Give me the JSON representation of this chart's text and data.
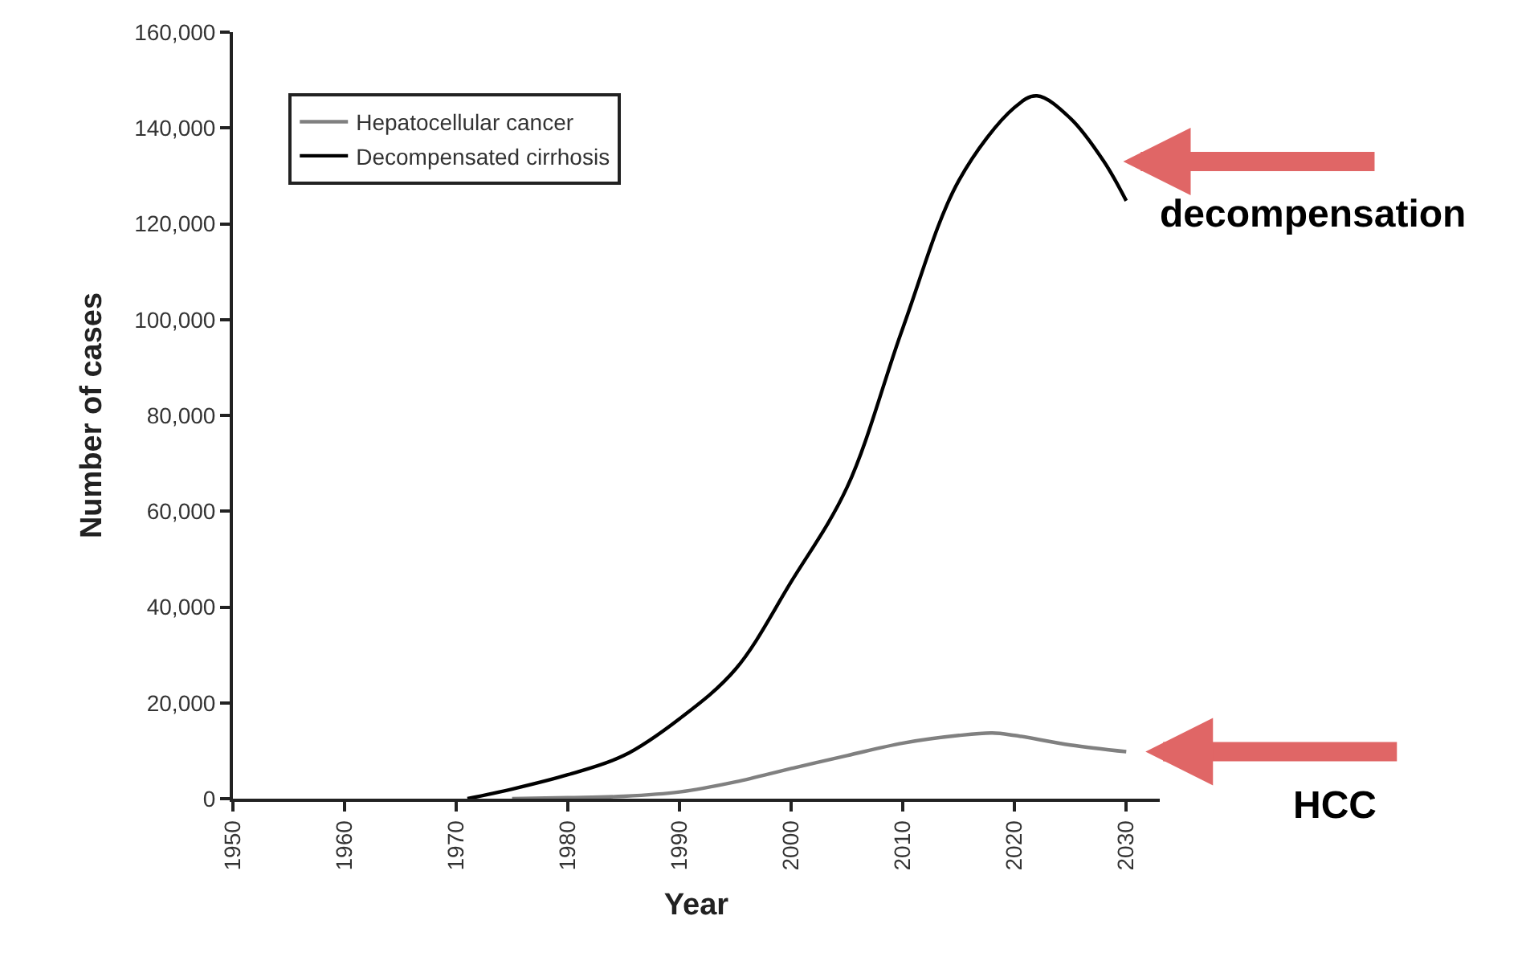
{
  "chart_data": {
    "type": "line",
    "xlabel": "Year",
    "ylabel": "Number of cases",
    "xlim": [
      1950,
      2033
    ],
    "xticks": [
      1950,
      1960,
      1970,
      1980,
      1990,
      2000,
      2010,
      2020,
      2030
    ],
    "ylim": [
      0,
      160000
    ],
    "yticks": [
      0,
      {
        "value": 20000,
        "label": "20,000"
      },
      {
        "value": 40000,
        "label": "40,000"
      },
      {
        "value": 60000,
        "label": "60,000"
      },
      {
        "value": 80000,
        "label": "80,000"
      },
      {
        "value": 100000,
        "label": "100,000"
      },
      {
        "value": 120000,
        "label": "120,000"
      },
      {
        "value": 140000,
        "label": "140,000"
      },
      {
        "value": 160000,
        "label": "160,000"
      }
    ],
    "legend": "top left",
    "marker": "none",
    "line_style": "solid",
    "series": [
      {
        "name": "Hepatocellular cancer",
        "color": "#808080",
        "x": [
          1975,
          1980,
          1985,
          1990,
          1995,
          2000,
          2005,
          2010,
          2015,
          2018,
          2020,
          2025,
          2030
        ],
        "values": [
          0,
          200,
          500,
          1400,
          3500,
          6300,
          9000,
          11600,
          13200,
          13700,
          13200,
          11200,
          9800
        ]
      },
      {
        "name": "Decompensated cirrhosis",
        "color": "#000000",
        "x": [
          1971,
          1975,
          1980,
          1985,
          1990,
          1995,
          2000,
          2005,
          2010,
          2015,
          2020,
          2022,
          2025,
          2028,
          2030
        ],
        "values": [
          0,
          2000,
          5000,
          9000,
          16700,
          27000,
          45300,
          65000,
          98300,
          129000,
          144300,
          146700,
          142000,
          133000,
          124800
        ]
      }
    ],
    "annotations": [
      {
        "text": "decompensation",
        "x": 2028,
        "y": 133000
      },
      {
        "text": "HCC",
        "x": 2030,
        "y": 9800
      }
    ]
  }
}
